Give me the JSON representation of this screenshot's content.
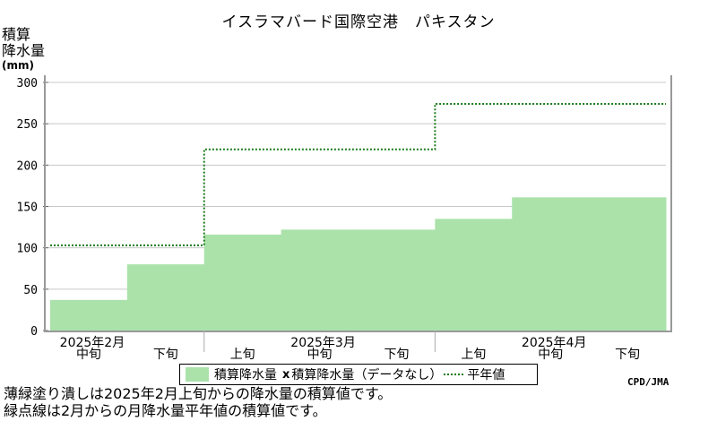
{
  "chart_data": {
    "type": "area",
    "title": "イスラマバード国際空港　パキスタン",
    "ylabel_lines": [
      "積算",
      "降水量"
    ],
    "yunit": "(mm)",
    "ylim": [
      0,
      300
    ],
    "yticks": [
      0,
      50,
      100,
      150,
      200,
      250,
      300
    ],
    "periods": [
      "2月中旬",
      "2月下旬",
      "3月上旬",
      "3月中旬",
      "3月下旬",
      "4月上旬",
      "4月中旬",
      "4月下旬"
    ],
    "period_labels": [
      "中旬",
      "下旬",
      "上旬",
      "中旬",
      "下旬",
      "上旬",
      "中旬",
      "下旬"
    ],
    "month_labels": [
      "2025年2月",
      "2025年3月",
      "2025年4月"
    ],
    "series": [
      {
        "name": "積算降水量",
        "style": "filled-step",
        "color": "#aae2aa",
        "values": [
          37,
          80,
          116,
          122,
          122,
          135,
          161,
          161
        ]
      },
      {
        "name": "平年値",
        "style": "dotted-step",
        "color": "#1a7a1a",
        "values": [
          103,
          103,
          219,
          219,
          219,
          274,
          274,
          274
        ]
      }
    ],
    "legend": {
      "accumulated": "積算降水量",
      "no_data": "積算降水量（データなし）",
      "normal": "平年値"
    },
    "grid": true,
    "legend_position": "bottom"
  },
  "source": "CPD/JMA",
  "notes": [
    "薄緑塗り潰しは2025年2月上旬からの降水量の積算値です。",
    "緑点線は2月からの月降水量平年値の積算値です。"
  ],
  "colors": {
    "fill": "#aae2aa",
    "normal_line": "#1a7a1a",
    "grid": "#c8c8c8",
    "axis": "#888888"
  }
}
